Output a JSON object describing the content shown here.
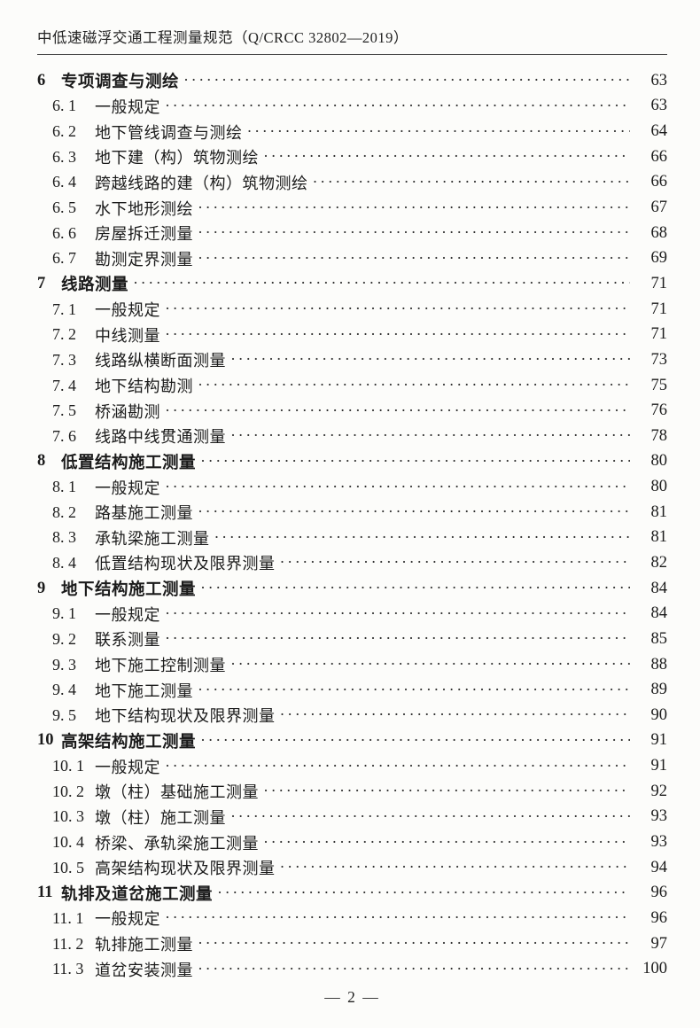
{
  "header": {
    "title": "中低速磁浮交通工程测量规范（Q/CRCC 32802—2019）"
  },
  "toc": {
    "entries": [
      {
        "num": "6",
        "title": "专项调查与测绘",
        "page": "63",
        "level": "chapter"
      },
      {
        "num": "6. 1",
        "title": "一般规定",
        "page": "63",
        "level": "sub"
      },
      {
        "num": "6. 2",
        "title": "地下管线调查与测绘",
        "page": "64",
        "level": "sub"
      },
      {
        "num": "6. 3",
        "title": "地下建（构）筑物测绘",
        "page": "66",
        "level": "sub"
      },
      {
        "num": "6. 4",
        "title": "跨越线路的建（构）筑物测绘",
        "page": "66",
        "level": "sub"
      },
      {
        "num": "6. 5",
        "title": "水下地形测绘",
        "page": "67",
        "level": "sub"
      },
      {
        "num": "6. 6",
        "title": "房屋拆迁测量",
        "page": "68",
        "level": "sub"
      },
      {
        "num": "6. 7",
        "title": "勘测定界测量",
        "page": "69",
        "level": "sub"
      },
      {
        "num": "7",
        "title": "线路测量",
        "page": "71",
        "level": "chapter"
      },
      {
        "num": "7. 1",
        "title": "一般规定",
        "page": "71",
        "level": "sub"
      },
      {
        "num": "7. 2",
        "title": "中线测量",
        "page": "71",
        "level": "sub"
      },
      {
        "num": "7. 3",
        "title": "线路纵横断面测量",
        "page": "73",
        "level": "sub"
      },
      {
        "num": "7. 4",
        "title": "地下结构勘测",
        "page": "75",
        "level": "sub"
      },
      {
        "num": "7. 5",
        "title": "桥涵勘测",
        "page": "76",
        "level": "sub"
      },
      {
        "num": "7. 6",
        "title": "线路中线贯通测量",
        "page": "78",
        "level": "sub"
      },
      {
        "num": "8",
        "title": "低置结构施工测量",
        "page": "80",
        "level": "chapter"
      },
      {
        "num": "8. 1",
        "title": "一般规定",
        "page": "80",
        "level": "sub"
      },
      {
        "num": "8. 2",
        "title": "路基施工测量",
        "page": "81",
        "level": "sub"
      },
      {
        "num": "8. 3",
        "title": "承轨梁施工测量",
        "page": "81",
        "level": "sub"
      },
      {
        "num": "8. 4",
        "title": "低置结构现状及限界测量",
        "page": "82",
        "level": "sub"
      },
      {
        "num": "9",
        "title": "地下结构施工测量",
        "page": "84",
        "level": "chapter"
      },
      {
        "num": "9. 1",
        "title": "一般规定",
        "page": "84",
        "level": "sub"
      },
      {
        "num": "9. 2",
        "title": "联系测量",
        "page": "85",
        "level": "sub"
      },
      {
        "num": "9. 3",
        "title": "地下施工控制测量",
        "page": "88",
        "level": "sub"
      },
      {
        "num": "9. 4",
        "title": "地下施工测量",
        "page": "89",
        "level": "sub"
      },
      {
        "num": "9. 5",
        "title": "地下结构现状及限界测量",
        "page": "90",
        "level": "sub"
      },
      {
        "num": "10",
        "title": "高架结构施工测量",
        "page": "91",
        "level": "chapter"
      },
      {
        "num": "10. 1",
        "title": "一般规定",
        "page": "91",
        "level": "sub"
      },
      {
        "num": "10. 2",
        "title": "墩（柱）基础施工测量",
        "page": "92",
        "level": "sub"
      },
      {
        "num": "10. 3",
        "title": "墩（柱）施工测量",
        "page": "93",
        "level": "sub"
      },
      {
        "num": "10. 4",
        "title": "桥梁、承轨梁施工测量",
        "page": "93",
        "level": "sub"
      },
      {
        "num": "10. 5",
        "title": "高架结构现状及限界测量",
        "page": "94",
        "level": "sub"
      },
      {
        "num": "11",
        "title": "轨排及道岔施工测量",
        "page": "96",
        "level": "chapter"
      },
      {
        "num": "11. 1",
        "title": "一般规定",
        "page": "96",
        "level": "sub"
      },
      {
        "num": "11. 2",
        "title": "轨排施工测量",
        "page": "97",
        "level": "sub"
      },
      {
        "num": "11. 3",
        "title": "道岔安装测量",
        "page": "100",
        "level": "sub"
      }
    ]
  },
  "footer": {
    "page_number": "2",
    "page_label": "— 2 —"
  }
}
